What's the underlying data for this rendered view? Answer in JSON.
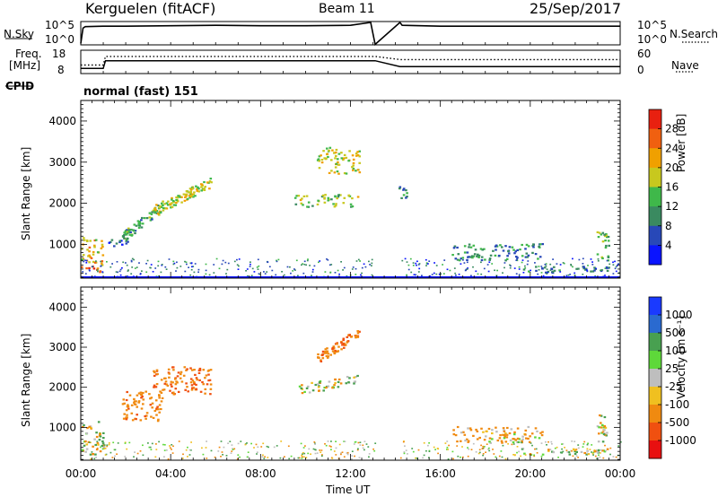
{
  "header": {
    "station": "Kerguelen (fitACF)",
    "beam": "Beam 11",
    "date": "25/Sep/2017",
    "mode": "normal (fast) 151"
  },
  "noise_panel": {
    "left_label": "N.Sky",
    "right_label": "N.Search",
    "tick_top": "10^5",
    "tick_bottom": "10^0"
  },
  "freq_panel": {
    "left_label_1": "Freq.",
    "left_label_2": "[MHz]",
    "left_tick_top": "18",
    "left_tick_bottom": "8",
    "right_label": "Nave",
    "right_tick_top": "60",
    "right_tick_bottom": "0",
    "cpid_label": "CPID"
  },
  "x_axis": {
    "label": "Time UT",
    "ticks": [
      "00:00",
      "04:00",
      "08:00",
      "12:00",
      "16:00",
      "20:00",
      "00:00"
    ],
    "range_hours": [
      0,
      24
    ]
  },
  "y_axis": {
    "label": "Slant Range [km]",
    "ticks": [
      "1000",
      "2000",
      "3000",
      "4000"
    ],
    "range_km": [
      180,
      4500
    ]
  },
  "power_colorbar": {
    "label": "Power [dB]",
    "ticks": [
      "4",
      "8",
      "12",
      "16",
      "20",
      "24",
      "28"
    ],
    "colors": [
      "#0a14ff",
      "#2848b8",
      "#3a8a60",
      "#3fb84a",
      "#c8c81e",
      "#f0a000",
      "#f06010",
      "#e82010"
    ]
  },
  "velocity_colorbar": {
    "label": "Velocity [m s⁻¹]",
    "ticks": [
      "1000",
      "500",
      "100",
      "25",
      "-25",
      "-100",
      "-500",
      "-1000"
    ],
    "colors": [
      "#1a3aff",
      "#2a6ad0",
      "#48a050",
      "#5ed83a",
      "#bebebe",
      "#f0c020",
      "#f08a10",
      "#f05010",
      "#e81010"
    ]
  },
  "chart_data": {
    "type": "heatmap",
    "title": "Kerguelen (fitACF) Beam 11 25/Sep/2017",
    "xlabel": "Time UT",
    "ylabel": "Slant Range [km]",
    "xlim_hours": [
      0,
      24
    ],
    "ylim_km": [
      180,
      4500
    ],
    "data_gap_hours": [
      13.1,
      14.2
    ],
    "noise_series": {
      "name": "N.Sky",
      "times_h": [
        0,
        0.1,
        0.2,
        1,
        2,
        4,
        6,
        8,
        10,
        12,
        12.9,
        13.1,
        14.2,
        14.3,
        16,
        18,
        20,
        22,
        24
      ],
      "log10_values": [
        0.3,
        3.6,
        3.9,
        4.0,
        4.0,
        4.1,
        4.2,
        4.1,
        4.1,
        4.2,
        4.8,
        0.1,
        4.8,
        4.2,
        4.0,
        4.0,
        4.0,
        4.0,
        4.0
      ]
    },
    "freq_series": {
      "name": "Freq.",
      "times_h": [
        0,
        1,
        1.1,
        13.1,
        14.2,
        24
      ],
      "mhz": [
        10.2,
        10.2,
        13.5,
        13.5,
        11.0,
        11.0
      ]
    },
    "nave_series": {
      "name": "Nave",
      "times_h": [
        0,
        1,
        1.1,
        13.1,
        14.2,
        24
      ],
      "values": [
        22,
        22,
        44,
        44,
        36,
        36
      ]
    },
    "power_features": [
      {
        "t": [
          0.0,
          1.0
        ],
        "r": [
          300,
          450
        ],
        "value_db": 27
      },
      {
        "t": [
          0.0,
          1.0
        ],
        "r": [
          450,
          1150
        ],
        "value_db": 20
      },
      {
        "t": [
          1.0,
          2.1
        ],
        "r": [
          900,
          1100
        ],
        "value_db": 6
      },
      {
        "t": [
          1.8,
          3.6
        ],
        "r": [
          1150,
          1900
        ],
        "value_db": 12
      },
      {
        "t": [
          3.2,
          5.8
        ],
        "r": [
          1800,
          2500
        ],
        "value_db": 18
      },
      {
        "t": [
          9.5,
          12.4
        ],
        "r": [
          1900,
          2200
        ],
        "value_db": 16
      },
      {
        "t": [
          10.5,
          12.4
        ],
        "r": [
          2700,
          3350
        ],
        "value_db": 18
      },
      {
        "t": [
          14.1,
          14.5
        ],
        "r": [
          1950,
          2400
        ],
        "value_db": 10
      },
      {
        "t": [
          16.5,
          20.5
        ],
        "r": [
          600,
          1000
        ],
        "value_db": 10
      },
      {
        "t": [
          19.5,
          23.5
        ],
        "r": [
          300,
          450
        ],
        "value_db": 8
      },
      {
        "t": [
          22.9,
          23.5
        ],
        "r": [
          600,
          1300
        ],
        "value_db": 14
      }
    ],
    "velocity_features": [
      {
        "t": [
          0.0,
          1.0
        ],
        "r": [
          300,
          1150
        ],
        "value_ms": 0
      },
      {
        "t": [
          1.8,
          3.6
        ],
        "r": [
          1150,
          1900
        ],
        "value_ms": -200
      },
      {
        "t": [
          3.2,
          5.8
        ],
        "r": [
          1800,
          2500
        ],
        "value_ms": -300
      },
      {
        "t": [
          9.5,
          12.4
        ],
        "r": [
          1900,
          2200
        ],
        "value_ms": 0
      },
      {
        "t": [
          10.5,
          12.4
        ],
        "r": [
          2700,
          3350
        ],
        "value_ms": -250
      },
      {
        "t": [
          16.5,
          20.5
        ],
        "r": [
          600,
          1000
        ],
        "value_ms": -100
      },
      {
        "t": [
          19.5,
          23.5
        ],
        "r": [
          300,
          450
        ],
        "value_ms": 0
      },
      {
        "t": [
          22.9,
          23.5
        ],
        "r": [
          600,
          1300
        ],
        "value_ms": 0
      }
    ]
  }
}
